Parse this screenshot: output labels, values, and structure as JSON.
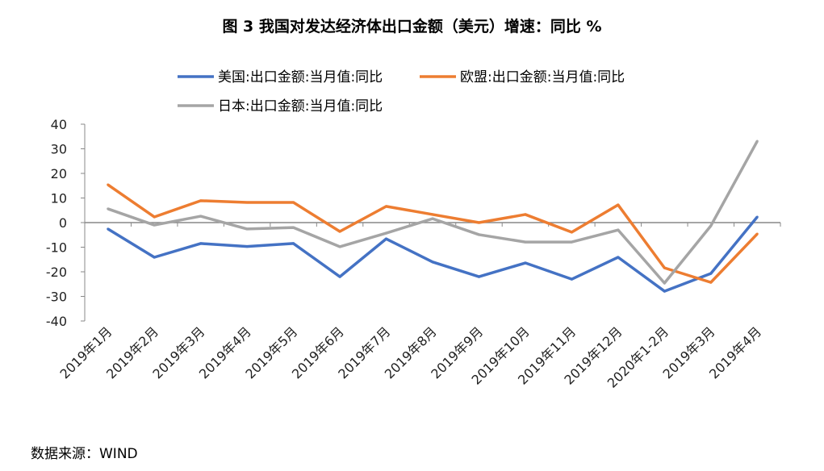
{
  "chart_data": {
    "type": "line",
    "title": "图 3   我国对发达经济体出口金额（美元）增速：同比 %",
    "xlabel": "",
    "ylabel": "",
    "ylim": [
      -40,
      40
    ],
    "yticks": [
      40,
      30,
      20,
      10,
      0,
      -10,
      -20,
      -30,
      -40
    ],
    "grid": false,
    "legend": "top",
    "categories": [
      "2019年1月",
      "2019年2月",
      "2019年3月",
      "2019年4月",
      "2019年5月",
      "2019年6月",
      "2019年7月",
      "2019年8月",
      "2019年9月",
      "2019年10月",
      "2019年11月",
      "2019年12月",
      "2020年1-2月",
      "2019年3月",
      "2019年4月"
    ],
    "series": [
      {
        "name": "美国:出口金额:当月值:同比",
        "color": "#4472C4",
        "values": [
          -2.6,
          -14.1,
          -8.5,
          -9.7,
          -8.5,
          -22.0,
          -6.6,
          -16.0,
          -22.0,
          -16.4,
          -23.0,
          -14.1,
          -27.9,
          -20.7,
          2.3
        ]
      },
      {
        "name": "欧盟:出口金额:当月值:同比",
        "color": "#ED7D31",
        "values": [
          15.4,
          2.3,
          8.9,
          8.2,
          8.2,
          -3.6,
          6.6,
          3.3,
          0.0,
          3.3,
          -3.9,
          7.2,
          -18.4,
          -24.3,
          -4.6
        ]
      },
      {
        "name": "日本:出口金额:当月值:同比",
        "color": "#A5A5A5",
        "values": [
          5.6,
          -1.0,
          2.6,
          -2.6,
          -2.0,
          -9.8,
          -4.3,
          1.6,
          -4.9,
          -7.9,
          -7.9,
          -3.0,
          -24.6,
          -1.3,
          33.1
        ]
      }
    ]
  },
  "source": "数据来源：WIND"
}
